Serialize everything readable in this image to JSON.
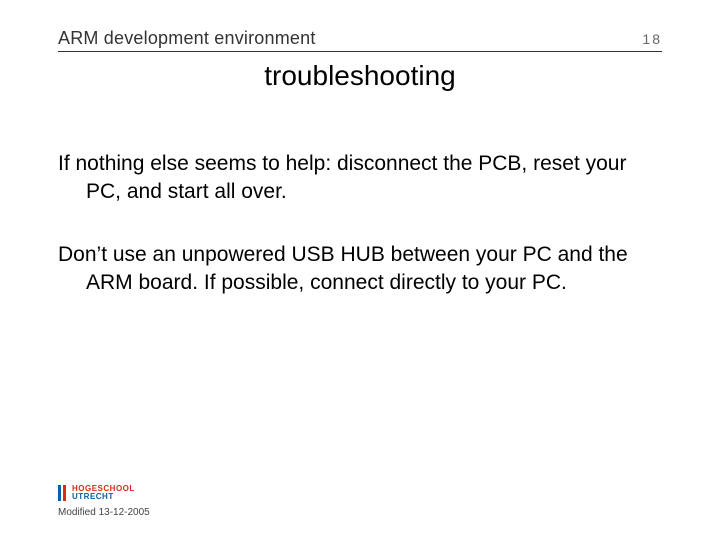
{
  "header": {
    "title": "ARM development environment",
    "page_number": "18"
  },
  "slide": {
    "title": "troubleshooting",
    "paragraphs": [
      "If nothing else seems to help: disconnect the PCB, reset your PC, and start all over.",
      "Don’t use an unpowered USB HUB between your PC and the ARM board. If possible, connect directly to your PC."
    ]
  },
  "footer": {
    "logo_top": "HOGESCHOOL",
    "logo_bottom": "UTRECHT",
    "logo_colors": {
      "bar1": "#0a5fa8",
      "bar2": "#d92a1c",
      "text_top": "#d92a1c",
      "text_bottom": "#0a5fa8"
    },
    "modified": "Modified 13-12-2005"
  },
  "colors": {
    "background": "#ffffff",
    "text": "#000000",
    "header_text": "#333333",
    "rule": "#333333"
  }
}
